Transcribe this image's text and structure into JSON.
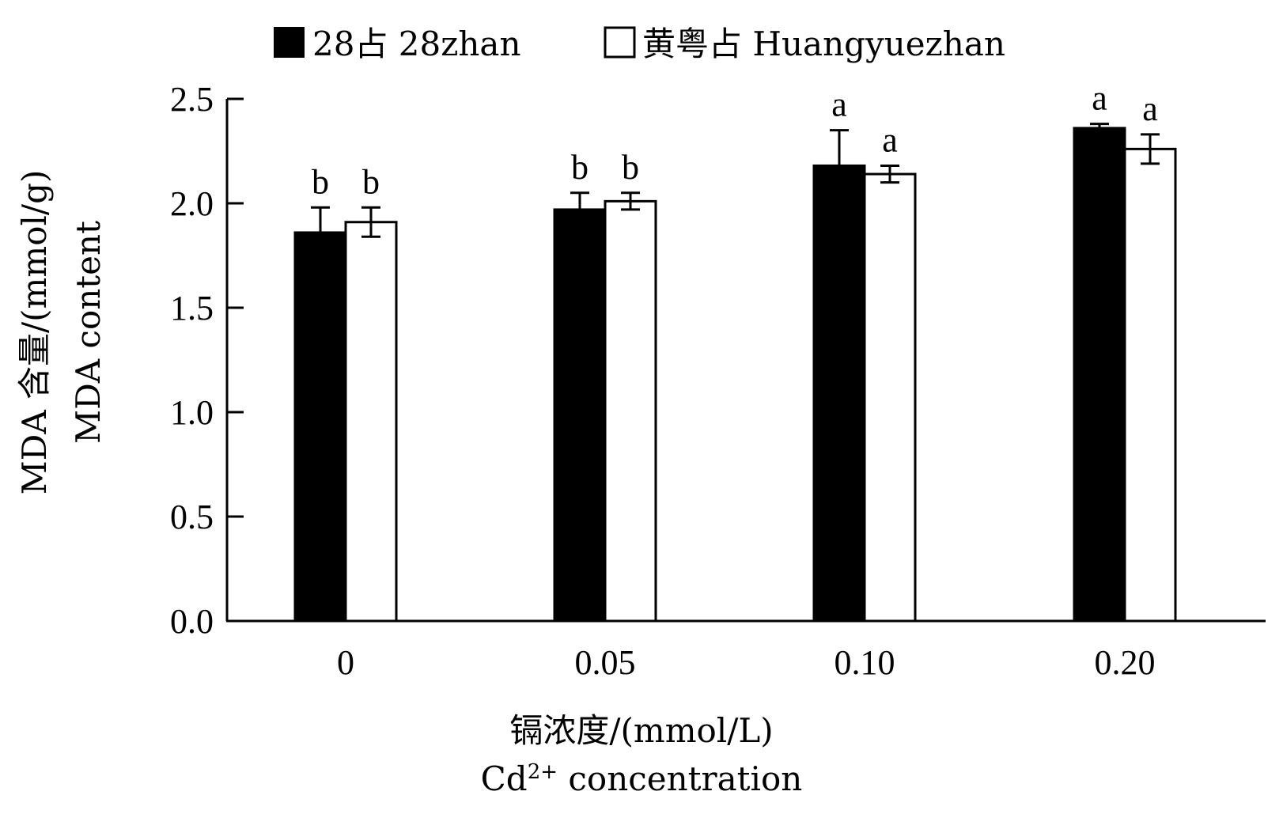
{
  "chart_data": {
    "type": "bar",
    "categories": [
      "0",
      "0.05",
      "0.10",
      "0.20"
    ],
    "series": [
      {
        "name": "28占 28zhan",
        "name_cn": "28 占",
        "name_en": "28zhan",
        "fill": "#000000",
        "values": [
          1.86,
          1.97,
          2.18,
          2.36
        ],
        "errors": [
          0.12,
          0.08,
          0.17,
          0.02
        ],
        "sig": [
          "b",
          "b",
          "a",
          "a"
        ]
      },
      {
        "name": "黄粤占 Huangyuezhan",
        "name_cn": "黄粤占",
        "name_en": "Huangyuezhan",
        "fill": "#ffffff",
        "values": [
          1.91,
          2.01,
          2.14,
          2.26
        ],
        "errors": [
          0.07,
          0.04,
          0.04,
          0.07
        ],
        "sig": [
          "b",
          "b",
          "a",
          "a"
        ]
      }
    ],
    "yticks": [
      "0.0",
      "0.5",
      "1.0",
      "1.5",
      "2.0",
      "2.5"
    ],
    "ylim": [
      0,
      2.5
    ],
    "ylabel_cn": "MDA 含量/(mmol/g)",
    "ylabel_en": "MDA content",
    "xlabel_cn": "镉浓度/(mmol/L)",
    "xlabel_en_main": "Cd",
    "xlabel_en_sup": "2+",
    "xlabel_en_rest": " concentration",
    "legend_position": "top",
    "grid": false
  }
}
